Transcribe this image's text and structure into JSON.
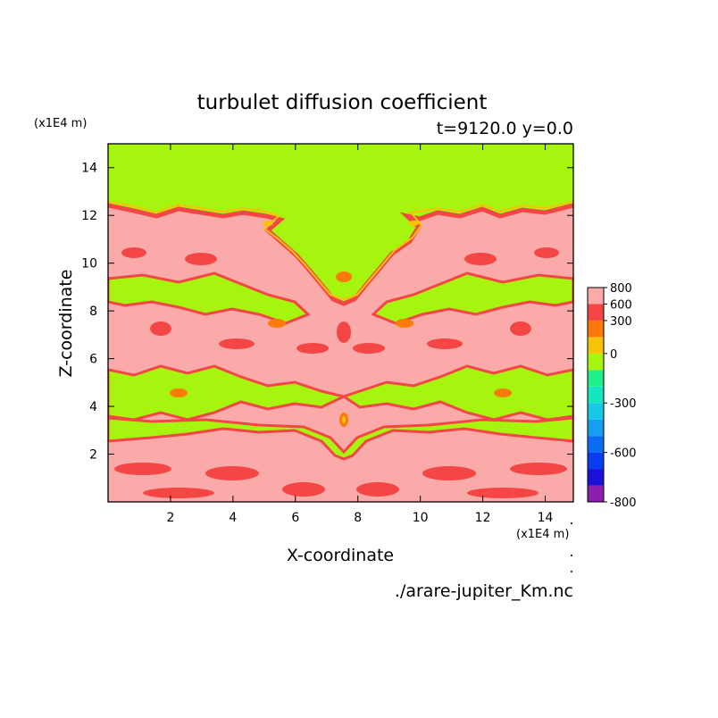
{
  "chart_data": {
    "type": "heatmap",
    "title": "turbulet diffusion coefficient",
    "subtitle": "t=9120.0 y=0.0",
    "xlabel": "X-coordinate",
    "ylabel": "Z-coordinate",
    "x_unit": "(x1E4 m)",
    "y_unit": "(x1E4 m)",
    "xlim": [
      0,
      14.9
    ],
    "ylim": [
      0,
      15
    ],
    "x_ticks": [
      2,
      4,
      6,
      8,
      10,
      12,
      14
    ],
    "y_ticks": [
      2,
      4,
      6,
      8,
      10,
      12,
      14
    ],
    "source_file": "./arare-jupiter_Km.nc",
    "colorbar": {
      "levels": [
        -800,
        -700,
        -600,
        -500,
        -400,
        -300,
        -200,
        -100,
        0,
        100,
        300,
        600,
        800
      ],
      "labels": [
        800,
        600,
        300,
        0,
        -300,
        -600,
        -800
      ],
      "colors": [
        "#8a1fb0",
        "#1a10d8",
        "#0a3cf0",
        "#0a6cf0",
        "#169ef0",
        "#18c8e6",
        "#14e6c0",
        "#20f08a",
        "#a6f50e",
        "#f6c20a",
        "#fb7a0a",
        "#f54646",
        "#fbaaaa"
      ]
    },
    "field_summary": [
      {
        "z_range": [
          12.3,
          15
        ],
        "value": "0 to 100"
      },
      {
        "z_range": [
          9.3,
          12.3
        ],
        "value": "mix of 0 to 100 and 600 to 800"
      },
      {
        "z_range": [
          3.0,
          9.3
        ],
        "value": "mostly 600 to 800 with bands of 0 to 100"
      },
      {
        "z_range": [
          0,
          3.0
        ],
        "value": "600 to 800 with patches near 300 to 600"
      }
    ]
  }
}
